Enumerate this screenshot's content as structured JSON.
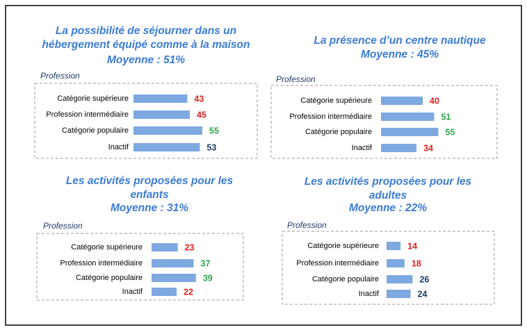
{
  "chart_data": [
    {
      "type": "bar",
      "orientation": "horizontal",
      "title": [
        "La possibilité de séjourner dans un",
        "hébergement équipé comme à la maison"
      ],
      "subtitle": "Moyenne : 51%",
      "group_label": "Profession",
      "categories": [
        "Catégorie supérieure",
        "Profession intermédiaire",
        "Catégorie populaire",
        "Inactif"
      ],
      "values": [
        43,
        45,
        55,
        53
      ],
      "color": "#7ea8e0",
      "value_colors": [
        "#e02020",
        "#e02020",
        "#2ea44f",
        "#1f3864"
      ],
      "xlim": [
        0,
        100
      ]
    },
    {
      "type": "bar",
      "orientation": "horizontal",
      "title": [
        "La présence d’un centre nautique"
      ],
      "subtitle": "Moyenne : 45%",
      "group_label": "Profession",
      "categories": [
        "Catégorie supérieure",
        "Profession intermédiaire",
        "Catégorie populaire",
        "Inactif"
      ],
      "values": [
        40,
        51,
        55,
        34
      ],
      "color": "#7ea8e0",
      "value_colors": [
        "#e02020",
        "#2ea44f",
        "#2ea44f",
        "#e02020"
      ],
      "xlim": [
        0,
        120
      ]
    },
    {
      "type": "bar",
      "orientation": "horizontal",
      "title": [
        "Les activités proposées pour les",
        "enfants"
      ],
      "subtitle": "Moyenne : 31%",
      "group_label": "Profession",
      "categories": [
        "Catégorie supérieure",
        "Profession intermédiaire",
        "Catégorie populaire",
        "Inactif"
      ],
      "values": [
        23,
        37,
        39,
        22
      ],
      "color": "#7ea8e0",
      "value_colors": [
        "#e02020",
        "#2ea44f",
        "#2ea44f",
        "#e02020"
      ],
      "xlim": [
        0,
        110
      ]
    },
    {
      "type": "bar",
      "orientation": "horizontal",
      "title": [
        "Les activités proposées pour les",
        "adultes"
      ],
      "subtitle": "Moyenne : 22%",
      "group_label": "Profession",
      "categories": [
        "Catégorie supérieure",
        "Profession intermédiaire",
        "Catégorie populaire",
        "Inactif"
      ],
      "values": [
        14,
        18,
        26,
        24
      ],
      "color": "#7ea8e0",
      "value_colors": [
        "#e02020",
        "#e02020",
        "#1f3864",
        "#1f3864"
      ],
      "xlim": [
        0,
        125
      ]
    }
  ]
}
